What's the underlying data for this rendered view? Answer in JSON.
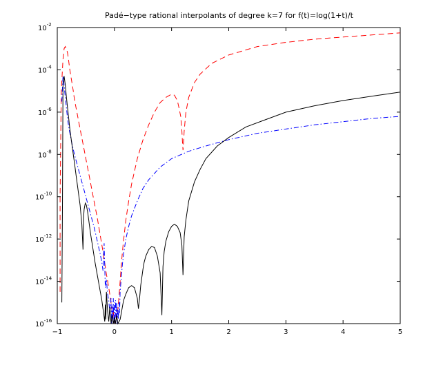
{
  "chart_data": {
    "type": "line",
    "title": "Padé−type rational interpolants of degree k=7 for f(t)=log(1+t)/t",
    "xlabel": "",
    "ylabel": "",
    "xlim": [
      -1,
      5
    ],
    "ylim_log10": [
      -16,
      -2
    ],
    "y_scale": "log",
    "grid": false,
    "legend": "none",
    "x_ticks": [
      {
        "value": -1,
        "label": "−1"
      },
      {
        "value": 0,
        "label": "0"
      },
      {
        "value": 1,
        "label": "1"
      },
      {
        "value": 2,
        "label": "2"
      },
      {
        "value": 3,
        "label": "3"
      },
      {
        "value": 4,
        "label": "4"
      },
      {
        "value": 5,
        "label": "5"
      }
    ],
    "y_ticks": [
      {
        "exp": -2,
        "base": "10",
        "sup": "-2"
      },
      {
        "exp": -4,
        "base": "10",
        "sup": "-4"
      },
      {
        "exp": -6,
        "base": "10",
        "sup": "-6"
      },
      {
        "exp": -8,
        "base": "10",
        "sup": "-8"
      },
      {
        "exp": -10,
        "base": "10",
        "sup": "-10"
      },
      {
        "exp": -12,
        "base": "10",
        "sup": "-12"
      },
      {
        "exp": -14,
        "base": "10",
        "sup": "-14"
      },
      {
        "exp": -16,
        "base": "10",
        "sup": "-16"
      }
    ],
    "series": [
      {
        "color": "#ff0000",
        "style": "dashed",
        "x": [
          -0.95,
          -0.95,
          -0.93,
          -0.9,
          -0.88,
          -0.86,
          -0.84,
          -0.82,
          -0.8,
          -0.78,
          -0.75,
          -0.72,
          -0.7,
          -0.65,
          -0.6,
          -0.55,
          -0.5,
          -0.45,
          -0.4,
          -0.35,
          -0.3,
          -0.25,
          -0.2,
          -0.15,
          -0.1,
          -0.07,
          -0.05,
          -0.03,
          -0.02,
          0.0,
          0.02,
          0.04,
          0.06,
          0.08,
          0.1,
          0.12,
          0.15,
          0.2,
          0.25,
          0.3,
          0.4,
          0.5,
          0.6,
          0.7,
          0.8,
          0.9,
          1.0,
          1.05,
          1.1,
          1.13,
          1.16,
          1.18,
          1.19,
          1.2,
          1.21,
          1.22,
          1.25,
          1.3,
          1.4,
          1.5,
          1.7,
          2.0,
          2.5,
          3.0,
          3.5,
          4.0,
          4.5,
          5.0
        ],
        "y": [
          -14.5,
          -10.0,
          -5.0,
          -3.5,
          -3.0,
          -2.9,
          -3.0,
          -3.2,
          -3.6,
          -4.0,
          -4.5,
          -5.0,
          -5.4,
          -6.1,
          -6.8,
          -7.5,
          -8.2,
          -8.9,
          -9.6,
          -10.3,
          -11.0,
          -11.8,
          -12.6,
          -13.5,
          -14.3,
          -14.8,
          -15.2,
          -15.7,
          -15.4,
          -16.0,
          -15.5,
          -15.8,
          -15.3,
          -14.7,
          -14.0,
          -13.2,
          -12.3,
          -11.1,
          -10.2,
          -9.4,
          -8.2,
          -7.3,
          -6.6,
          -6.0,
          -5.55,
          -5.3,
          -5.15,
          -5.2,
          -5.45,
          -5.8,
          -6.2,
          -6.9,
          -7.4,
          -7.8,
          -7.4,
          -6.9,
          -6.0,
          -5.3,
          -4.6,
          -4.2,
          -3.7,
          -3.3,
          -2.9,
          -2.7,
          -2.55,
          -2.45,
          -2.35,
          -2.25
        ]
      },
      {
        "color": "#0000ff",
        "style": "dash-dot",
        "x": [
          -0.92,
          -0.9,
          -0.88,
          -0.86,
          -0.84,
          -0.82,
          -0.8,
          -0.75,
          -0.7,
          -0.65,
          -0.6,
          -0.55,
          -0.5,
          -0.45,
          -0.4,
          -0.35,
          -0.3,
          -0.25,
          -0.22,
          -0.2,
          -0.18,
          -0.16,
          -0.14,
          -0.12,
          -0.1,
          -0.08,
          -0.06,
          -0.05,
          -0.04,
          -0.03,
          -0.02,
          -0.01,
          0.0,
          0.01,
          0.02,
          0.03,
          0.04,
          0.05,
          0.06,
          0.07,
          0.08,
          0.09,
          0.1,
          0.12,
          0.14,
          0.16,
          0.2,
          0.25,
          0.3,
          0.4,
          0.5,
          0.6,
          0.8,
          1.0,
          1.3,
          1.6,
          2.0,
          2.5,
          3.0,
          3.5,
          4.0,
          4.5,
          5.0
        ],
        "y": [
          -5.5,
          -4.3,
          -4.7,
          -5.3,
          -5.8,
          -6.3,
          -6.7,
          -7.4,
          -8.0,
          -8.5,
          -9.0,
          -9.5,
          -10.0,
          -10.5,
          -11.0,
          -11.5,
          -12.1,
          -12.7,
          -13.1,
          -13.5,
          -12.2,
          -14.3,
          -13.9,
          -14.6,
          -14.9,
          -15.5,
          -14.8,
          -16.0,
          -15.2,
          -15.8,
          -14.8,
          -16.0,
          -15.0,
          -15.9,
          -14.9,
          -15.7,
          -15.0,
          -16.0,
          -15.3,
          -15.8,
          -15.0,
          -15.5,
          -14.5,
          -13.8,
          -13.2,
          -12.7,
          -12.0,
          -11.4,
          -10.9,
          -10.2,
          -9.6,
          -9.2,
          -8.6,
          -8.2,
          -7.85,
          -7.6,
          -7.3,
          -7.0,
          -6.8,
          -6.6,
          -6.45,
          -6.3,
          -6.2
        ]
      },
      {
        "color": "#000000",
        "style": "solid",
        "x": [
          -0.92,
          -0.91,
          -0.9,
          -0.88,
          -0.86,
          -0.84,
          -0.82,
          -0.8,
          -0.78,
          -0.75,
          -0.72,
          -0.7,
          -0.67,
          -0.64,
          -0.6,
          -0.57,
          -0.55,
          -0.54,
          -0.53,
          -0.51,
          -0.49,
          -0.47,
          -0.45,
          -0.42,
          -0.38,
          -0.34,
          -0.3,
          -0.26,
          -0.22,
          -0.19,
          -0.17,
          -0.16,
          -0.15,
          -0.14,
          -0.12,
          -0.1,
          -0.08,
          -0.06,
          -0.04,
          -0.02,
          0.0,
          0.02,
          0.04,
          0.06,
          0.08,
          0.1,
          0.12,
          0.14,
          0.16,
          0.2,
          0.25,
          0.3,
          0.35,
          0.4,
          0.42,
          0.44,
          0.46,
          0.48,
          0.5,
          0.52,
          0.55,
          0.6,
          0.65,
          0.7,
          0.75,
          0.8,
          0.83,
          0.85,
          0.87,
          0.9,
          0.95,
          1.0,
          1.05,
          1.1,
          1.15,
          1.18,
          1.2,
          1.22,
          1.25,
          1.3,
          1.4,
          1.5,
          1.6,
          1.8,
          2.0,
          2.3,
          2.6,
          3.0,
          3.5,
          4.0,
          4.5,
          5.0
        ],
        "y": [
          -15.0,
          -10.5,
          -4.6,
          -4.3,
          -4.7,
          -5.3,
          -5.8,
          -6.3,
          -6.8,
          -7.4,
          -8.0,
          -8.4,
          -9.0,
          -9.6,
          -10.4,
          -11.3,
          -12.5,
          -11.0,
          -10.6,
          -10.3,
          -10.4,
          -10.7,
          -11.1,
          -11.7,
          -12.4,
          -13.1,
          -13.7,
          -14.3,
          -14.9,
          -15.5,
          -15.9,
          -15.1,
          -15.8,
          -14.5,
          -15.4,
          -15.9,
          -15.2,
          -16.0,
          -15.6,
          -16.0,
          -15.7,
          -16.0,
          -15.6,
          -16.0,
          -15.9,
          -15.8,
          -15.5,
          -15.2,
          -14.9,
          -14.6,
          -14.3,
          -14.2,
          -14.3,
          -14.8,
          -15.3,
          -14.8,
          -14.2,
          -13.8,
          -13.4,
          -13.1,
          -12.8,
          -12.5,
          -12.35,
          -12.4,
          -12.8,
          -13.6,
          -15.6,
          -13.3,
          -12.6,
          -12.1,
          -11.65,
          -11.4,
          -11.3,
          -11.4,
          -11.7,
          -12.3,
          -13.7,
          -11.9,
          -11.1,
          -10.2,
          -9.3,
          -8.7,
          -8.2,
          -7.6,
          -7.2,
          -6.7,
          -6.4,
          -6.0,
          -5.7,
          -5.45,
          -5.25,
          -5.05
        ]
      }
    ]
  }
}
